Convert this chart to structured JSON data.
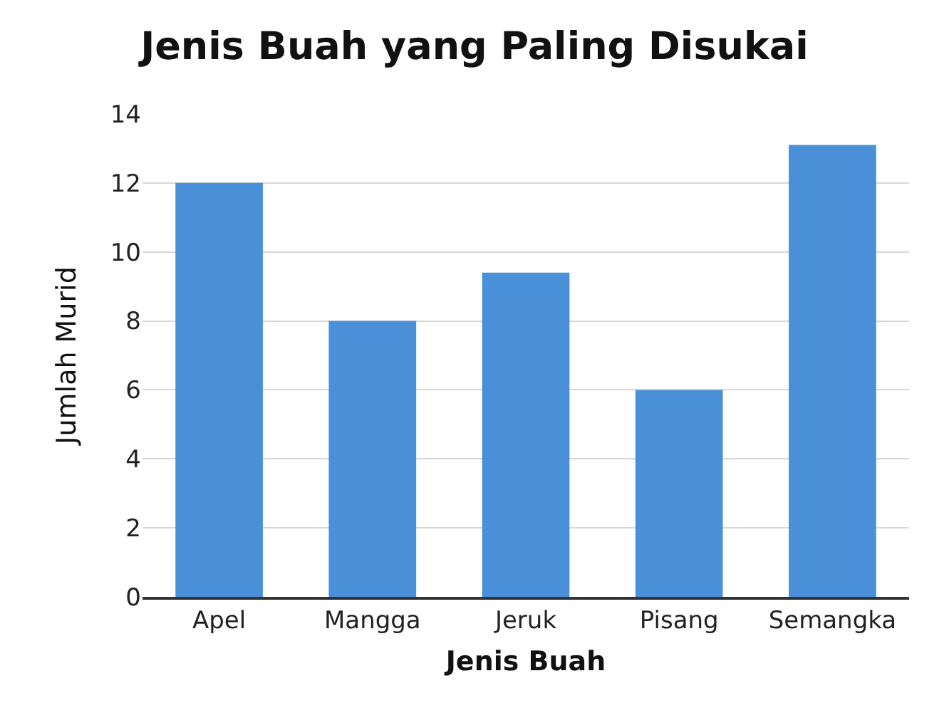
{
  "chart_data": {
    "type": "bar",
    "title": "Jenis Buah yang Paling Disukai",
    "xlabel": "Jenis Buah",
    "ylabel": "Jumlah Murid",
    "categories": [
      "Apel",
      "Mangga",
      "Jeruk",
      "Pisang",
      "Semangka"
    ],
    "values": [
      12,
      8,
      9.4,
      6,
      13.1
    ],
    "color": "#4a90d9",
    "ylim": [
      0,
      14
    ],
    "yticks": [
      0,
      2,
      4,
      6,
      8,
      10,
      12,
      14
    ],
    "grid": "y"
  }
}
